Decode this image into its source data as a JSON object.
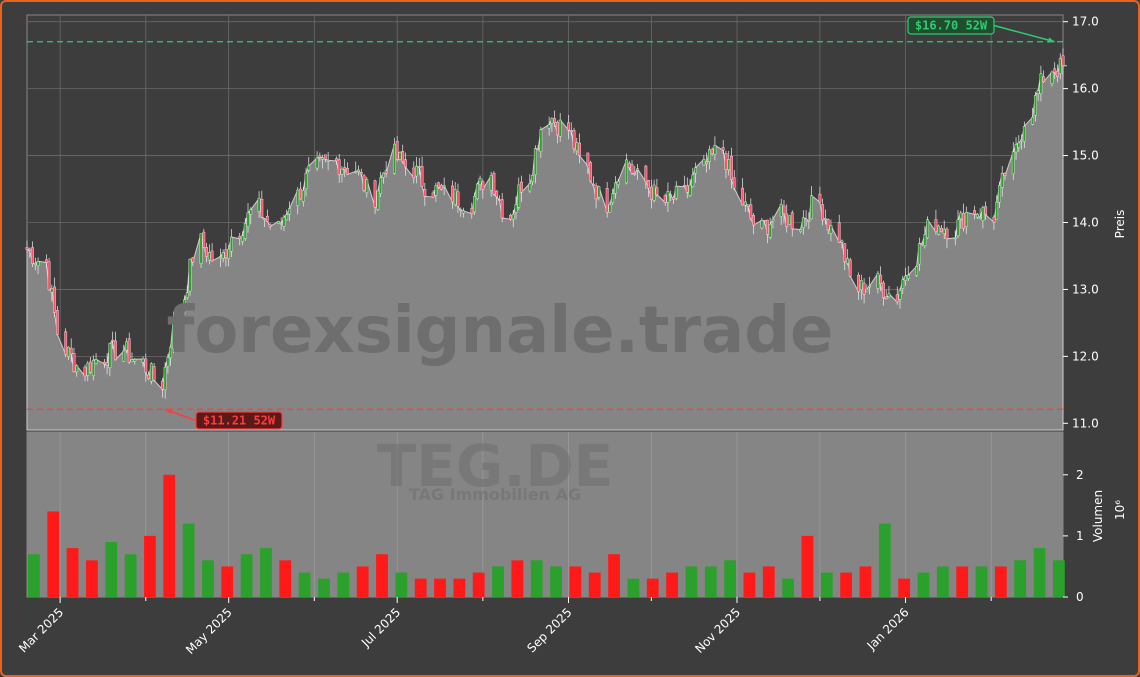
{
  "chart_data": {
    "type": "candlestick",
    "watermark": "forexsignale.trade",
    "ticker": "TEG.DE",
    "company": "TAG Immobilien AG",
    "price_axis": {
      "label": "Preis",
      "ylim": [
        10.9,
        17.1
      ],
      "ticks": [
        "11.0",
        "12.0",
        "13.0",
        "14.0",
        "15.0",
        "16.0",
        "17.0"
      ],
      "position": "right"
    },
    "volume_axis": {
      "label": "Volumen",
      "unit": "10⁶",
      "ylim": [
        0,
        2.7
      ],
      "ticks": [
        "0",
        "1",
        "2"
      ],
      "position": "right"
    },
    "x_axis": {
      "range": [
        "2025-02-17",
        "2026-02-27"
      ],
      "ticks": [
        {
          "date": "2025-03-01",
          "label": "Mar 2025"
        },
        {
          "date": "2025-05-01",
          "label": "May 2025"
        },
        {
          "date": "2025-07-01",
          "label": "Jul 2025"
        },
        {
          "date": "2025-09-01",
          "label": "Sep 2025"
        },
        {
          "date": "2025-11-01",
          "label": "Nov 2025"
        },
        {
          "date": "2026-01-01",
          "label": "Jan 2026"
        }
      ],
      "minor_ticks": [
        "2025-04-01",
        "2025-06-01",
        "2025-08-01",
        "2025-10-01",
        "2025-12-01",
        "2026-02-01"
      ]
    },
    "annotations": [
      {
        "name": "high-52w",
        "label": "$16.70 52W",
        "value": 16.7,
        "date": "2026-02-24",
        "color": "#2ecc71"
      },
      {
        "name": "low-52w",
        "label": "$11.21 52W",
        "value": 11.21,
        "date": "2025-04-08",
        "color": "#ff3b3b"
      }
    ],
    "colors": {
      "up": "#2ca02c",
      "down": "#ff1a1a",
      "area": "#858585",
      "background": "#3d3d3d"
    },
    "grid": true,
    "weekly_close": [
      [
        "2025-02-17",
        13.6
      ],
      [
        "2025-02-24",
        13.4
      ],
      [
        "2025-03-03",
        12.1
      ],
      [
        "2025-03-10",
        11.8
      ],
      [
        "2025-03-17",
        12.0
      ],
      [
        "2025-03-24",
        12.1
      ],
      [
        "2025-03-31",
        11.9
      ],
      [
        "2025-04-07",
        11.6
      ],
      [
        "2025-04-14",
        12.7
      ],
      [
        "2025-04-21",
        13.7
      ],
      [
        "2025-04-28",
        13.4
      ],
      [
        "2025-05-05",
        13.9
      ],
      [
        "2025-05-12",
        14.2
      ],
      [
        "2025-05-19",
        13.9
      ],
      [
        "2025-05-26",
        14.4
      ],
      [
        "2025-06-02",
        14.8
      ],
      [
        "2025-06-09",
        14.9
      ],
      [
        "2025-06-16",
        14.8
      ],
      [
        "2025-06-23",
        14.4
      ],
      [
        "2025-06-30",
        15.0
      ],
      [
        "2025-07-07",
        14.8
      ],
      [
        "2025-07-14",
        14.5
      ],
      [
        "2025-07-21",
        14.4
      ],
      [
        "2025-07-28",
        14.3
      ],
      [
        "2025-08-04",
        14.7
      ],
      [
        "2025-08-11",
        14.1
      ],
      [
        "2025-08-18",
        14.7
      ],
      [
        "2025-08-25",
        15.6
      ],
      [
        "2025-09-01",
        15.4
      ],
      [
        "2025-09-08",
        14.8
      ],
      [
        "2025-09-15",
        14.3
      ],
      [
        "2025-09-22",
        14.9
      ],
      [
        "2025-09-29",
        14.6
      ],
      [
        "2025-10-06",
        14.3
      ],
      [
        "2025-10-13",
        14.4
      ],
      [
        "2025-10-20",
        14.8
      ],
      [
        "2025-10-27",
        15.1
      ],
      [
        "2025-11-03",
        14.3
      ],
      [
        "2025-11-10",
        13.9
      ],
      [
        "2025-11-17",
        14.1
      ],
      [
        "2025-11-24",
        14.0
      ],
      [
        "2025-12-01",
        14.3
      ],
      [
        "2025-12-08",
        13.8
      ],
      [
        "2025-12-15",
        13.0
      ],
      [
        "2025-12-22",
        13.1
      ],
      [
        "2025-12-29",
        12.9
      ],
      [
        "2026-01-05",
        13.5
      ],
      [
        "2026-01-12",
        14.0
      ],
      [
        "2026-01-19",
        13.9
      ],
      [
        "2026-01-26",
        14.2
      ],
      [
        "2026-02-02",
        14.1
      ],
      [
        "2026-02-09",
        14.9
      ],
      [
        "2026-02-16",
        15.7
      ],
      [
        "2026-02-23",
        16.3
      ]
    ],
    "weekly_volume_millions": [
      0.7,
      1.4,
      0.8,
      0.6,
      0.9,
      0.7,
      1.0,
      2.0,
      1.2,
      0.6,
      0.5,
      0.7,
      0.8,
      0.6,
      0.4,
      0.3,
      0.4,
      0.5,
      0.7,
      0.4,
      0.3,
      0.3,
      0.3,
      0.4,
      0.5,
      0.6,
      0.6,
      0.5,
      0.5,
      0.4,
      0.7,
      0.3,
      0.3,
      0.4,
      0.5,
      0.5,
      0.6,
      0.4,
      0.5,
      0.3,
      1.0,
      0.4,
      0.4,
      0.5,
      1.2,
      0.3,
      0.4,
      0.5,
      0.5,
      0.5,
      0.5,
      0.6,
      0.8,
      0.6
    ]
  }
}
